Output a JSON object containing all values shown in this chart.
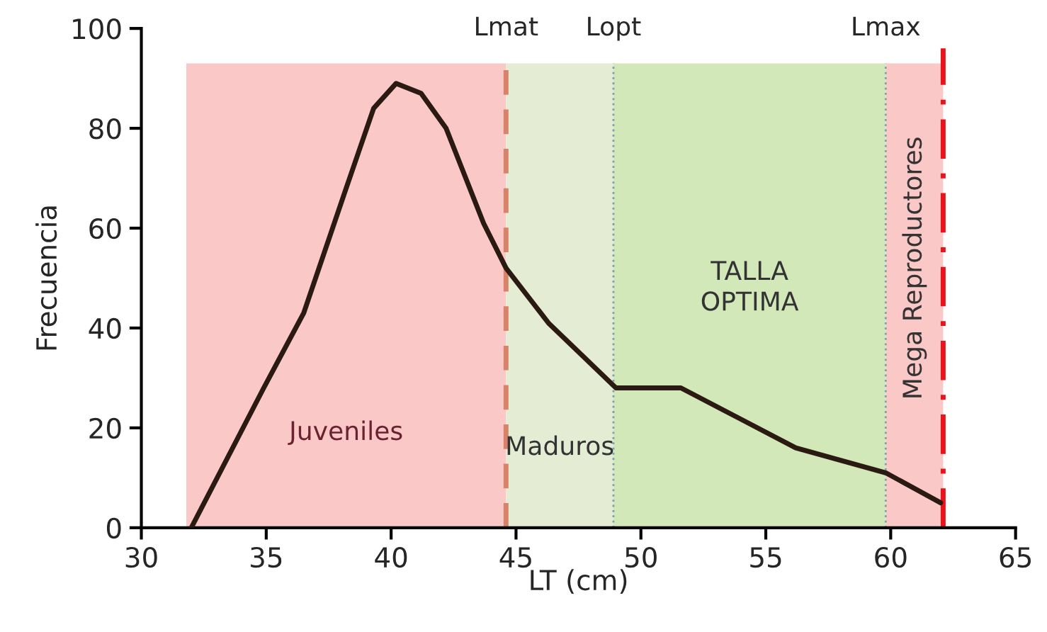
{
  "chart_data": {
    "type": "line",
    "xlabel": "LT (cm)",
    "ylabel": "Frecuencia",
    "x": [
      32.0,
      34.9,
      36.5,
      38.2,
      39.3,
      40.2,
      41.2,
      42.2,
      43.7,
      44.6,
      46.3,
      49.0,
      51.6,
      53.9,
      56.2,
      59.8,
      62.0
    ],
    "series": [
      {
        "color": "#2b1a12",
        "values": [
          0,
          28,
          43,
          68,
          84,
          89,
          87,
          80,
          61,
          52,
          41,
          28,
          28,
          22,
          16,
          11,
          5
        ]
      }
    ],
    "xlim": [
      30,
      65
    ],
    "xticks": [
      30,
      35,
      40,
      45,
      50,
      55,
      60,
      65
    ],
    "ylim": [
      0,
      100
    ],
    "yticks": [
      0,
      20,
      40,
      60,
      80,
      100
    ],
    "grid": false,
    "legend": false,
    "marker": "none",
    "line_style": "solid",
    "bands": [
      {
        "axis": "x",
        "from": 31.8,
        "to": 44.6,
        "label": "Juveniles",
        "color": "#fbc8c8"
      },
      {
        "axis": "x",
        "from": 44.6,
        "to": 48.9,
        "label": "Maduros",
        "color": "#e4ecd3"
      },
      {
        "axis": "x",
        "from": 48.9,
        "to": 59.8,
        "label": "TALLA\nOPTIMA",
        "color": "#d3e8b8"
      },
      {
        "axis": "x",
        "from": 59.8,
        "to": 62.1,
        "label": "Mega Reproductores",
        "color": "#fbc8c8"
      }
    ],
    "ref_lines": [
      {
        "axis": "x",
        "value": 44.6,
        "label": "Lmat",
        "color": "#d9826a",
        "line_style": "dashed"
      },
      {
        "axis": "x",
        "value": 48.9,
        "label": "Lopt",
        "color": "#7aa0b0",
        "line_style": "dotted"
      },
      {
        "axis": "x",
        "value": 59.8,
        "label": "Lmax",
        "color": "#7aa0b0",
        "line_style": "dotted"
      },
      {
        "axis": "x",
        "value": 62.1,
        "color": "#e8141c",
        "line_style": "dashdot"
      }
    ]
  }
}
